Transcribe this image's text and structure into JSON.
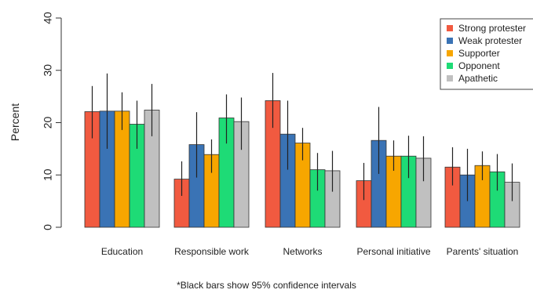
{
  "chart_data": {
    "type": "bar",
    "ylabel": "Percent",
    "ylim": [
      0,
      40
    ],
    "yticks": [
      0,
      10,
      20,
      30,
      40
    ],
    "grid": false,
    "legend_position": "top-right",
    "categories": [
      "Education",
      "Responsible work",
      "Networks",
      "Personal initiative",
      "Parents' situation"
    ],
    "series": [
      {
        "name": "Strong protester",
        "color": "#F15A40",
        "values": [
          22.1,
          9.2,
          24.2,
          8.9,
          11.5
        ],
        "ci": [
          [
            17.0,
            27.0
          ],
          [
            6.0,
            12.6
          ],
          [
            19.0,
            29.5
          ],
          [
            5.2,
            12.3
          ],
          [
            8.0,
            15.3
          ]
        ]
      },
      {
        "name": "Weak protester",
        "color": "#3A73B5",
        "values": [
          22.2,
          15.8,
          17.8,
          16.6,
          10.0
        ],
        "ci": [
          [
            15.0,
            29.4
          ],
          [
            9.5,
            22.0
          ],
          [
            11.0,
            24.2
          ],
          [
            10.2,
            23.0
          ],
          [
            5.0,
            15.0
          ]
        ]
      },
      {
        "name": "Supporter",
        "color": "#F7A600",
        "values": [
          22.2,
          13.9,
          16.1,
          13.6,
          11.8
        ],
        "ci": [
          [
            18.6,
            25.8
          ],
          [
            10.4,
            16.8
          ],
          [
            12.8,
            19.0
          ],
          [
            10.8,
            16.6
          ],
          [
            9.0,
            14.5
          ]
        ]
      },
      {
        "name": "Opponent",
        "color": "#1EDB76",
        "values": [
          19.7,
          20.9,
          11.0,
          13.6,
          10.6
        ],
        "ci": [
          [
            15.0,
            24.2
          ],
          [
            16.0,
            25.4
          ],
          [
            7.0,
            14.2
          ],
          [
            9.4,
            17.5
          ],
          [
            7.0,
            14.0
          ]
        ]
      },
      {
        "name": "Apathetic",
        "color": "#C0C0C0",
        "values": [
          22.4,
          20.2,
          10.8,
          13.2,
          8.6
        ],
        "ci": [
          [
            17.4,
            27.4
          ],
          [
            14.8,
            24.8
          ],
          [
            6.8,
            14.6
          ],
          [
            8.8,
            17.4
          ],
          [
            5.0,
            12.2
          ]
        ]
      }
    ],
    "footnote": "*Black bars show 95% confidence intervals"
  }
}
